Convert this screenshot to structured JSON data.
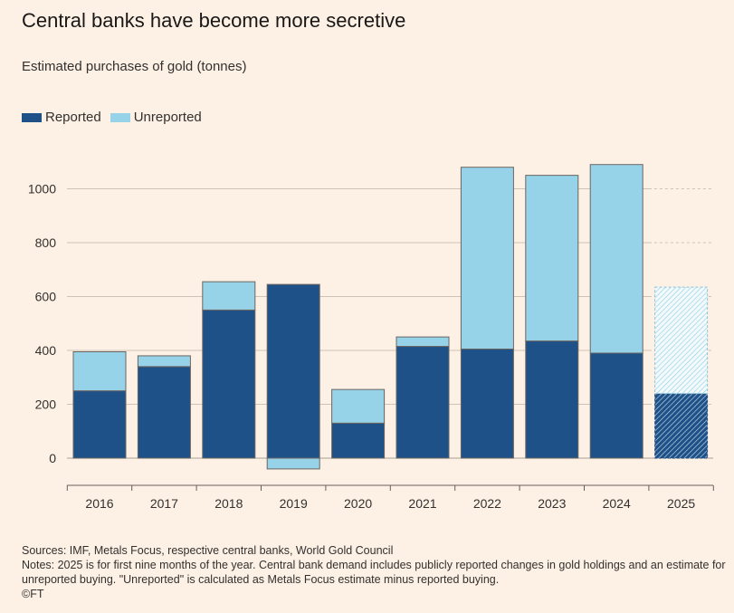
{
  "title": "Central banks have become more secretive",
  "subtitle": "Estimated purchases of gold (tonnes)",
  "legend": {
    "reported": "Reported",
    "unreported": "Unreported"
  },
  "colors": {
    "reported": "#1f5189",
    "unreported": "#96d3e8",
    "background": "#fdf1e6",
    "grid": "#cfc3b8"
  },
  "footer": {
    "sources": "Sources: IMF, Metals Focus, respective central banks, World Gold Council",
    "notes": "Notes: 2025 is for first nine months of the year. Central bank demand includes publicly reported changes in gold holdings and an estimate for unreported buying. \"Unreported\" is calculated as Metals Focus estimate minus reported buying.",
    "credit": "©FT"
  },
  "chart_data": {
    "type": "bar",
    "stacked": true,
    "categories": [
      "2016",
      "2017",
      "2018",
      "2019",
      "2020",
      "2021",
      "2022",
      "2023",
      "2024",
      "2025"
    ],
    "series": [
      {
        "name": "Reported",
        "values": [
          250,
          340,
          550,
          645,
          130,
          415,
          405,
          435,
          390,
          240
        ]
      },
      {
        "name": "Unreported",
        "values": [
          145,
          40,
          105,
          -40,
          125,
          35,
          675,
          615,
          700,
          395
        ]
      }
    ],
    "estimated_categories": [
      "2025"
    ],
    "ylim": [
      -100,
      1150
    ],
    "yticks": [
      0,
      200,
      400,
      600,
      800,
      1000
    ],
    "ytick_labels": [
      "0",
      "200",
      "400",
      "600",
      "800",
      "1000"
    ],
    "grid": true,
    "legend_position": "top-left"
  }
}
